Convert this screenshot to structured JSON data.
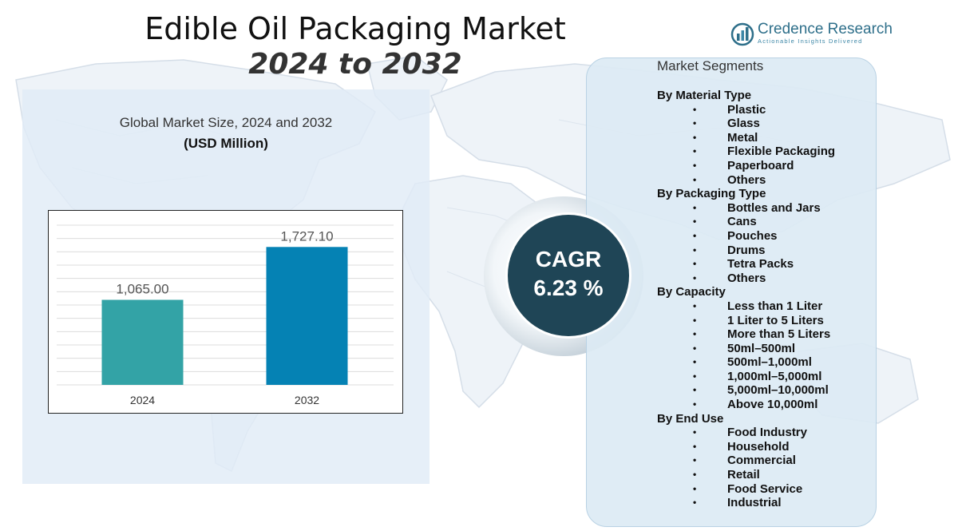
{
  "header": {
    "title": "Edible Oil Packaging Market",
    "subtitle": "2024 to 2032"
  },
  "logo": {
    "name": "Credence Research",
    "tagline": "Actionable Insights Delivered",
    "accent_color": "#2e6f8a"
  },
  "chart_data": {
    "type": "bar",
    "title": "Global Market Size,  2024 and 2032",
    "subtitle": "(USD Million)",
    "categories": [
      "2024",
      "2032"
    ],
    "values": [
      1065.0,
      1727.1
    ],
    "value_labels": [
      "1,065.00",
      "1,727.10"
    ],
    "bar_colors": [
      "#33a3a6",
      "#0582b4"
    ],
    "ylim": [
      0,
      2000
    ],
    "grid": true,
    "xlabel": "",
    "ylabel": ""
  },
  "cagr": {
    "label": "CAGR",
    "value": "6.23 %",
    "color": "#1f4556"
  },
  "segments": {
    "title": "Market Segments",
    "bullet": "•",
    "groups": [
      {
        "heading": "By Material Type",
        "items": [
          "Plastic",
          "Glass",
          "Metal",
          "Flexible Packaging",
          "Paperboard",
          "Others"
        ]
      },
      {
        "heading": "By Packaging Type",
        "items": [
          "Bottles  and Jars",
          "Cans",
          "Pouches",
          "Drums",
          "Tetra Packs",
          "Others"
        ]
      },
      {
        "heading": "By Capacity",
        "items": [
          "Less  than 1 Liter",
          "1 Liter to 5 Liters",
          "More than 5 Liters",
          "50ml–500ml",
          "500ml–1,000ml",
          "1,000ml–5,000ml",
          "5,000ml–10,000ml",
          "Above 10,000ml"
        ]
      },
      {
        "heading": "By End Use",
        "items": [
          "Food Industry",
          "Household",
          "Commercial",
          "Retail",
          "Food Service",
          "Industrial"
        ]
      }
    ]
  }
}
